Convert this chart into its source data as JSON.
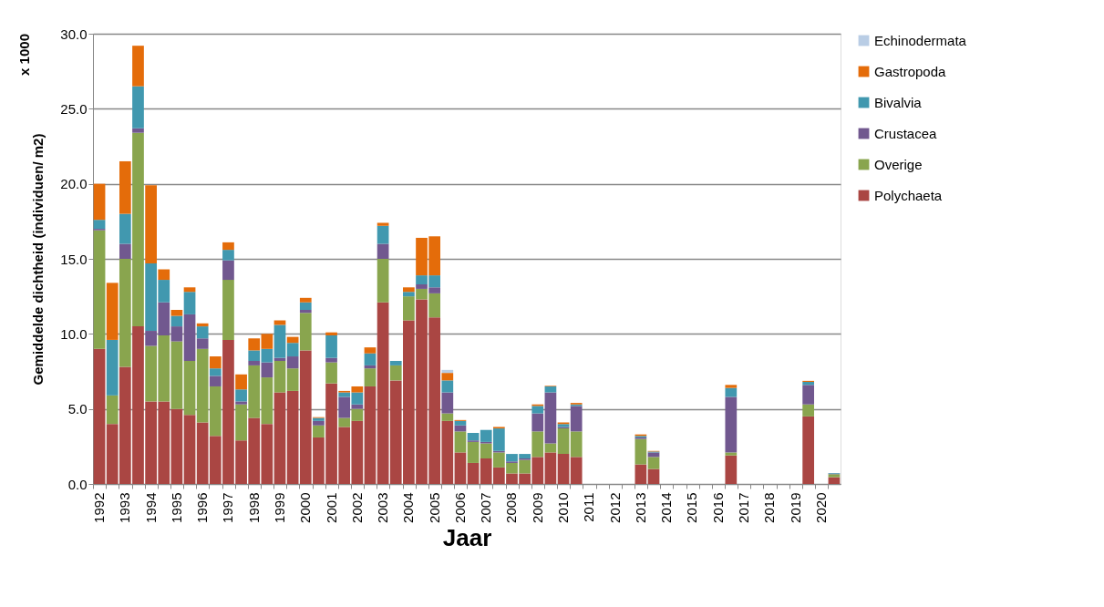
{
  "chart_data": {
    "type": "bar",
    "stacked": true,
    "xlabel": "Jaar",
    "ylabel": "Gemiddelde dichtheid (individuen/ m2)",
    "annotations": [
      "x 1000"
    ],
    "categories": [
      "1992",
      null,
      "1993",
      null,
      "1994",
      null,
      "1995",
      null,
      "1996",
      null,
      "1997",
      null,
      "1998",
      null,
      "1999",
      null,
      "2000",
      null,
      "2001",
      null,
      "2002",
      null,
      "2003",
      null,
      "2004",
      null,
      "2005",
      null,
      "2006",
      null,
      "2007",
      null,
      "2008",
      null,
      "2009",
      null,
      "2010",
      null,
      "2011",
      null,
      "2012",
      null,
      "2013",
      null,
      "2014",
      null,
      "2015",
      null,
      "2016",
      null,
      "2017",
      null,
      "2018",
      null,
      "2019",
      null,
      "2020",
      null
    ],
    "ylim": [
      0,
      30
    ],
    "yticks": [
      {
        "value": 0,
        "label": "0.0"
      },
      {
        "value": 5,
        "label": "5.0"
      },
      {
        "value": 10,
        "label": "10.0"
      },
      {
        "value": 15,
        "label": "15.0"
      },
      {
        "value": 20,
        "label": "20.0"
      },
      {
        "value": 25,
        "label": "25.0"
      },
      {
        "value": 30,
        "label": "30.0"
      }
    ],
    "grid": "y",
    "legend": "right",
    "series": [
      {
        "name": "Polychaeta",
        "color": "#aa4643",
        "values": [
          9.0,
          4.0,
          7.8,
          10.5,
          5.5,
          5.5,
          5.0,
          4.6,
          4.1,
          3.2,
          9.6,
          2.9,
          4.4,
          4.0,
          6.1,
          6.2,
          8.9,
          3.1,
          6.7,
          3.8,
          4.2,
          6.5,
          12.1,
          6.9,
          10.9,
          12.3,
          11.1,
          4.2,
          2.1,
          1.4,
          1.7,
          1.1,
          0.7,
          0.7,
          1.8,
          2.1,
          2.0,
          1.8,
          null,
          null,
          null,
          null,
          1.3,
          1.0,
          null,
          null,
          null,
          null,
          null,
          1.9,
          null,
          null,
          null,
          null,
          null,
          4.5,
          null,
          0.45
        ]
      },
      {
        "name": "Overige",
        "color": "#89a54e",
        "values": [
          7.9,
          1.9,
          7.2,
          12.9,
          3.7,
          4.4,
          4.5,
          3.6,
          4.9,
          3.3,
          4.0,
          2.4,
          3.5,
          3.1,
          2.1,
          1.5,
          2.5,
          0.8,
          1.4,
          0.6,
          0.8,
          1.2,
          2.9,
          1.0,
          1.6,
          0.7,
          1.6,
          0.5,
          1.4,
          1.4,
          1.0,
          1.0,
          0.7,
          0.9,
          1.7,
          0.6,
          1.7,
          1.7,
          null,
          null,
          null,
          null,
          1.7,
          0.8,
          null,
          null,
          null,
          null,
          null,
          0.2,
          null,
          null,
          null,
          null,
          null,
          0.8,
          null,
          0.2
        ]
      },
      {
        "name": "Crustacea",
        "color": "#71588f",
        "values": [
          0.1,
          0,
          1.0,
          0.3,
          1.0,
          2.2,
          1.0,
          3.1,
          0.7,
          0.7,
          1.3,
          0.2,
          0.3,
          1.0,
          0.2,
          0.8,
          0.2,
          0.3,
          0.3,
          1.4,
          0.3,
          0.2,
          1.0,
          0,
          0,
          0.3,
          0.4,
          1.4,
          0.4,
          0.1,
          0.1,
          0.1,
          0.1,
          0.1,
          1.2,
          3.4,
          0.1,
          1.7,
          null,
          null,
          null,
          null,
          0.1,
          0.3,
          null,
          null,
          null,
          null,
          null,
          3.7,
          null,
          null,
          null,
          null,
          null,
          1.3,
          null,
          0.04
        ]
      },
      {
        "name": "Bivalvia",
        "color": "#4198af",
        "values": [
          0.6,
          3.7,
          2.0,
          2.8,
          4.5,
          1.5,
          0.7,
          1.5,
          0.8,
          0.5,
          0.7,
          0.8,
          0.7,
          0.9,
          2.2,
          0.9,
          0.5,
          0.2,
          1.5,
          0.3,
          0.8,
          0.8,
          1.2,
          0.3,
          0.3,
          0.6,
          0.8,
          0.8,
          0.3,
          0.5,
          0.8,
          1.5,
          0.5,
          0.3,
          0.5,
          0.4,
          0.2,
          0.1,
          null,
          null,
          null,
          null,
          0.1,
          0.06,
          null,
          null,
          null,
          null,
          null,
          0.6,
          null,
          null,
          null,
          null,
          null,
          0.2,
          null,
          0.04
        ]
      },
      {
        "name": "Gastropoda",
        "color": "#e46c0a",
        "values": [
          2.4,
          3.8,
          3.5,
          2.7,
          5.2,
          0.7,
          0.4,
          0.3,
          0.2,
          0.8,
          0.5,
          1.0,
          0.8,
          1.0,
          0.3,
          0.4,
          0.3,
          0.05,
          0.2,
          0.1,
          0.4,
          0.4,
          0.2,
          0,
          0.3,
          2.5,
          2.6,
          0.5,
          0.06,
          0,
          0,
          0.1,
          0,
          0,
          0.1,
          0.04,
          0.1,
          0.1,
          null,
          null,
          null,
          null,
          0.1,
          0.04,
          null,
          null,
          null,
          null,
          null,
          0.2,
          null,
          null,
          null,
          null,
          null,
          0.07,
          null,
          0
        ]
      },
      {
        "name": "Echinodermata",
        "color": "#b9cde5",
        "values": [
          0,
          0,
          0,
          0,
          0,
          0,
          0,
          0,
          0,
          0,
          0,
          0,
          0,
          0,
          0,
          0,
          0,
          0,
          0,
          0,
          0,
          0,
          0,
          0,
          0,
          0,
          0,
          0.2,
          0,
          0,
          0,
          0,
          0,
          0,
          0,
          0,
          0,
          0,
          null,
          null,
          null,
          null,
          0,
          0,
          null,
          null,
          null,
          null,
          null,
          0,
          null,
          null,
          null,
          null,
          null,
          0,
          null,
          0
        ]
      }
    ]
  }
}
